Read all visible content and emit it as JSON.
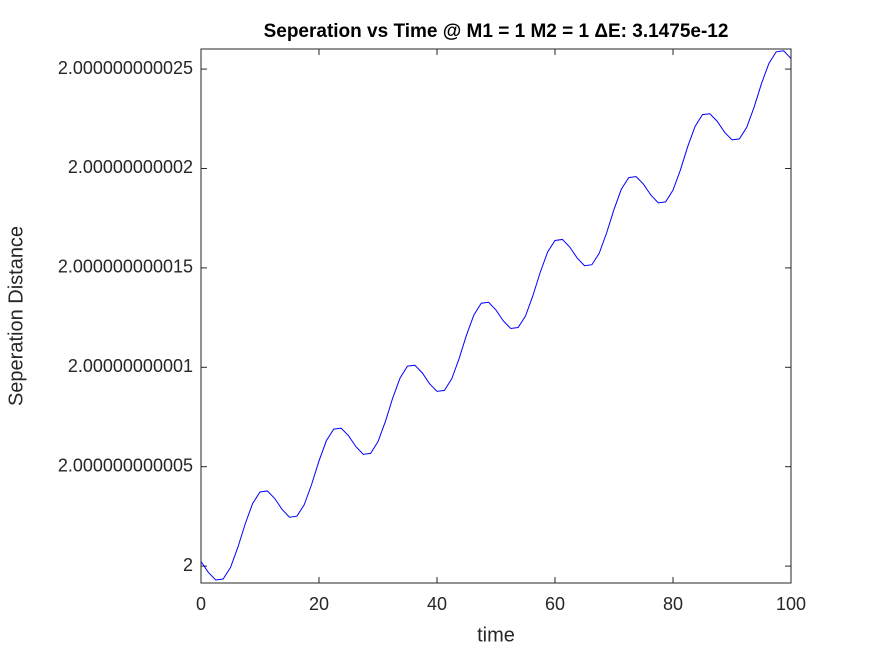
{
  "chart_data": {
    "type": "line",
    "title": "Seperation vs Time @ M1 = 1 M2 = 1 ΔE: 3.1475e-12",
    "xlabel": "time",
    "ylabel": "Seperation Distance",
    "x": [
      0,
      1.25,
      2.5,
      3.75,
      5,
      6.25,
      7.5,
      8.75,
      10,
      11.25,
      12.5,
      13.75,
      15,
      16.25,
      17.5,
      18.75,
      20,
      21.25,
      22.5,
      23.75,
      25,
      26.25,
      27.5,
      28.75,
      30,
      31.25,
      32.5,
      33.75,
      35,
      36.25,
      37.5,
      38.75,
      40,
      41.25,
      42.5,
      43.75,
      45,
      46.25,
      47.5,
      48.75,
      50,
      51.25,
      52.5,
      53.75,
      55,
      56.25,
      57.5,
      58.75,
      60,
      61.25,
      62.5,
      63.75,
      65,
      66.25,
      67.5,
      68.75,
      70,
      71.25,
      72.5,
      73.75,
      75,
      76.25,
      77.5,
      78.75,
      80,
      81.25,
      82.5,
      83.75,
      85,
      86.25,
      87.5,
      88.75,
      90,
      91.25,
      92.5,
      93.75,
      95,
      96.25,
      97.5,
      98.75,
      100
    ],
    "series": [
      {
        "color": "#0000ff",
        "values": [
          2.00000000000023,
          1.99999999999968,
          1.9999999999993,
          1.99999999999935,
          1.99999999999993,
          2.00000000000095,
          2.00000000000213,
          2.00000000000315,
          2.00000000000373,
          2.00000000000378,
          2.0000000000034,
          2.00000000000285,
          2.00000000000246,
          2.00000000000251,
          2.00000000000309,
          2.00000000000411,
          2.00000000000529,
          2.00000000000631,
          2.00000000000689,
          2.00000000000694,
          2.00000000000656,
          2.00000000000601,
          2.00000000000562,
          2.00000000000567,
          2.00000000000626,
          2.00000000000727,
          2.00000000000846,
          2.00000000000947,
          2.00000000001006,
          2.0000000000101,
          2.00000000000972,
          2.00000000000917,
          2.00000000000879,
          2.00000000000884,
          2.00000000000942,
          2.00000000001044,
          2.00000000001162,
          2.00000000001263,
          2.00000000001322,
          2.00000000001327,
          2.00000000001288,
          2.00000000001233,
          2.00000000001195,
          2.000000000012,
          2.00000000001258,
          2.0000000000136,
          2.00000000001478,
          2.0000000000158,
          2.00000000001638,
          2.00000000001643,
          2.00000000001605,
          2.0000000000155,
          2.00000000001511,
          2.00000000001516,
          2.00000000001574,
          2.00000000001676,
          2.00000000001794,
          2.00000000001896,
          2.00000000001954,
          2.00000000001959,
          2.00000000001921,
          2.00000000001866,
          2.00000000001827,
          2.00000000001832,
          2.00000000001891,
          2.00000000001992,
          2.00000000002111,
          2.00000000002212,
          2.00000000002271,
          2.00000000002275,
          2.00000000002237,
          2.00000000002182,
          2.00000000002144,
          2.00000000002149,
          2.00000000002207,
          2.00000000002309,
          2.00000000002427,
          2.00000000002528,
          2.00000000002587,
          2.00000000002592,
          2.00000000002553
        ]
      }
    ],
    "xlim": [
      0,
      100
    ],
    "xticks": [
      0,
      20,
      40,
      60,
      80,
      100
    ],
    "ylim": [
      1.99999999999915,
      2.00000000002601
    ],
    "yticks": [
      2,
      2.000000000005,
      2.00000000001,
      2.000000000015,
      2.00000000002,
      2.000000000025
    ]
  }
}
